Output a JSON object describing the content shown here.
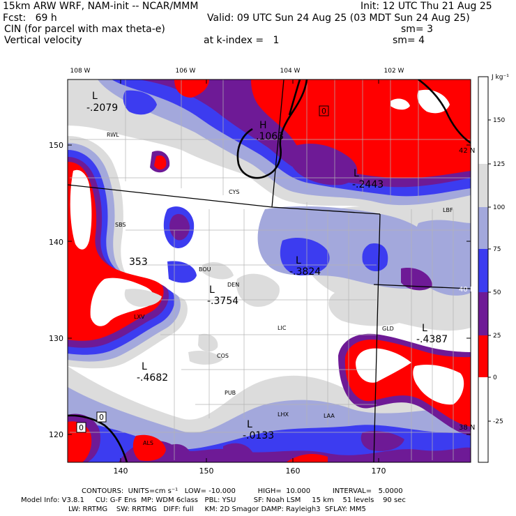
{
  "header": {
    "line1_left": "15km ARW WRF, NAM-init -- NCAR/MMM",
    "line1_right": "Init: 12 UTC Thu 21 Aug 25",
    "line2_left": "Fcst:   69 h",
    "line2_right": "Valid: 09 UTC Sun 24 Aug 25 (03 MDT Sun 24 Aug 25)",
    "line3_left": "CIN (for parcel with max theta-e)",
    "line3_right": "sm= 3",
    "line4_left": "Vertical velocity",
    "line4_mid": "at k-index =   1",
    "line4_right": "sm= 4"
  },
  "axes": {
    "top_lon_labels": [
      "108 W",
      "106 W",
      "104 W",
      "102 W"
    ],
    "right_lat_labels": [
      "42 N",
      "40 N",
      "38 N"
    ],
    "left_y_labels": [
      "150",
      "140",
      "130",
      "120"
    ],
    "bottom_x_labels": [
      "140",
      "150",
      "160",
      "170"
    ]
  },
  "colorbar": {
    "unit": "J kg⁻¹",
    "ticks": [
      "150",
      "125",
      "100",
      "75",
      "50",
      "25",
      "0",
      "-25"
    ],
    "colors": {
      "white": "#ffffff",
      "lightgray": "#dcdcdc",
      "lavender": "#a3a8dc",
      "blue": "#3c3cf0",
      "purple": "#6e1a96",
      "red": "#ff0000"
    }
  },
  "map_labels": {
    "highs_lows": [
      {
        "letter": "L",
        "value": "-.2079"
      },
      {
        "letter": "H",
        "value": ".1063"
      },
      {
        "letter": "L",
        "value": "-.2443"
      },
      {
        "letter": "L",
        "value": "-.3824"
      },
      {
        "letter": "L",
        "value": "-.3754"
      },
      {
        "letter": "L",
        "value": "-.4387"
      },
      {
        "letter": "L",
        "value": "-.4682"
      },
      {
        "letter": "L",
        "value": "-.0133"
      }
    ],
    "partial_value": "353",
    "contour_box_labels": [
      "0",
      "0",
      "0"
    ],
    "stations": [
      "RWL",
      "CYS",
      "SBS",
      "BOU",
      "DEN",
      "LXV",
      "LIC",
      "COS",
      "PUB",
      "LHX",
      "LAA",
      "GLD",
      "LBF",
      "ALS"
    ]
  },
  "footer": {
    "line1": "CONTOURS:  UNITS=cm s⁻¹   LOW= -10.000          HIGH=  10.000          INTERVAL=   5.0000",
    "line2": "Model Info: V3.8.1     CU: G-F Ens  MP: WDM 6class   PBL: YSU        SF: Noah LSM     15 km    51 levels    90 sec",
    "line3": "LW: RRTMG    SW: RRTMG   DIFF: full     KM: 2D Smagor DAMP: Rayleigh3  SFLAY: MM5"
  }
}
